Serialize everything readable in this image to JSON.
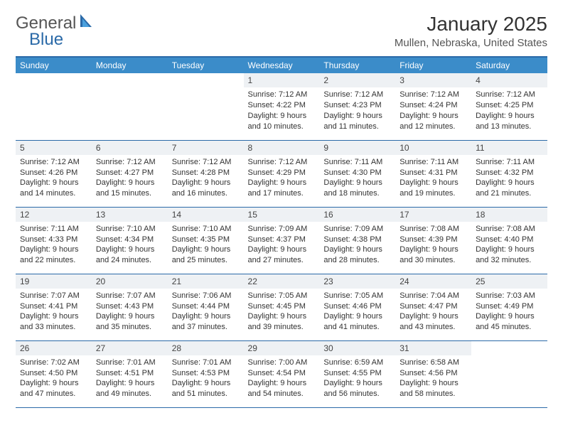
{
  "logo": {
    "text1": "General",
    "text2": "Blue"
  },
  "title": "January 2025",
  "location": "Mullen, Nebraska, United States",
  "colors": {
    "header_bg": "#3b8cc9",
    "header_text": "#ffffff",
    "border": "#2b6aa8",
    "daynum_bg": "#eef1f4",
    "body_text": "#333333",
    "page_bg": "#ffffff",
    "logo_gray": "#555555",
    "logo_blue": "#2b6aa8"
  },
  "typography": {
    "month_title_size": 28,
    "location_size": 15,
    "weekday_header_size": 12,
    "daynum_size": 12,
    "cell_size": 11
  },
  "weekdays": [
    "Sunday",
    "Monday",
    "Tuesday",
    "Wednesday",
    "Thursday",
    "Friday",
    "Saturday"
  ],
  "weeks": [
    [
      {
        "day": "",
        "sunrise": "",
        "sunset": "",
        "daylight": ""
      },
      {
        "day": "",
        "sunrise": "",
        "sunset": "",
        "daylight": ""
      },
      {
        "day": "",
        "sunrise": "",
        "sunset": "",
        "daylight": ""
      },
      {
        "day": "1",
        "sunrise": "Sunrise: 7:12 AM",
        "sunset": "Sunset: 4:22 PM",
        "daylight": "Daylight: 9 hours and 10 minutes."
      },
      {
        "day": "2",
        "sunrise": "Sunrise: 7:12 AM",
        "sunset": "Sunset: 4:23 PM",
        "daylight": "Daylight: 9 hours and 11 minutes."
      },
      {
        "day": "3",
        "sunrise": "Sunrise: 7:12 AM",
        "sunset": "Sunset: 4:24 PM",
        "daylight": "Daylight: 9 hours and 12 minutes."
      },
      {
        "day": "4",
        "sunrise": "Sunrise: 7:12 AM",
        "sunset": "Sunset: 4:25 PM",
        "daylight": "Daylight: 9 hours and 13 minutes."
      }
    ],
    [
      {
        "day": "5",
        "sunrise": "Sunrise: 7:12 AM",
        "sunset": "Sunset: 4:26 PM",
        "daylight": "Daylight: 9 hours and 14 minutes."
      },
      {
        "day": "6",
        "sunrise": "Sunrise: 7:12 AM",
        "sunset": "Sunset: 4:27 PM",
        "daylight": "Daylight: 9 hours and 15 minutes."
      },
      {
        "day": "7",
        "sunrise": "Sunrise: 7:12 AM",
        "sunset": "Sunset: 4:28 PM",
        "daylight": "Daylight: 9 hours and 16 minutes."
      },
      {
        "day": "8",
        "sunrise": "Sunrise: 7:12 AM",
        "sunset": "Sunset: 4:29 PM",
        "daylight": "Daylight: 9 hours and 17 minutes."
      },
      {
        "day": "9",
        "sunrise": "Sunrise: 7:11 AM",
        "sunset": "Sunset: 4:30 PM",
        "daylight": "Daylight: 9 hours and 18 minutes."
      },
      {
        "day": "10",
        "sunrise": "Sunrise: 7:11 AM",
        "sunset": "Sunset: 4:31 PM",
        "daylight": "Daylight: 9 hours and 19 minutes."
      },
      {
        "day": "11",
        "sunrise": "Sunrise: 7:11 AM",
        "sunset": "Sunset: 4:32 PM",
        "daylight": "Daylight: 9 hours and 21 minutes."
      }
    ],
    [
      {
        "day": "12",
        "sunrise": "Sunrise: 7:11 AM",
        "sunset": "Sunset: 4:33 PM",
        "daylight": "Daylight: 9 hours and 22 minutes."
      },
      {
        "day": "13",
        "sunrise": "Sunrise: 7:10 AM",
        "sunset": "Sunset: 4:34 PM",
        "daylight": "Daylight: 9 hours and 24 minutes."
      },
      {
        "day": "14",
        "sunrise": "Sunrise: 7:10 AM",
        "sunset": "Sunset: 4:35 PM",
        "daylight": "Daylight: 9 hours and 25 minutes."
      },
      {
        "day": "15",
        "sunrise": "Sunrise: 7:09 AM",
        "sunset": "Sunset: 4:37 PM",
        "daylight": "Daylight: 9 hours and 27 minutes."
      },
      {
        "day": "16",
        "sunrise": "Sunrise: 7:09 AM",
        "sunset": "Sunset: 4:38 PM",
        "daylight": "Daylight: 9 hours and 28 minutes."
      },
      {
        "day": "17",
        "sunrise": "Sunrise: 7:08 AM",
        "sunset": "Sunset: 4:39 PM",
        "daylight": "Daylight: 9 hours and 30 minutes."
      },
      {
        "day": "18",
        "sunrise": "Sunrise: 7:08 AM",
        "sunset": "Sunset: 4:40 PM",
        "daylight": "Daylight: 9 hours and 32 minutes."
      }
    ],
    [
      {
        "day": "19",
        "sunrise": "Sunrise: 7:07 AM",
        "sunset": "Sunset: 4:41 PM",
        "daylight": "Daylight: 9 hours and 33 minutes."
      },
      {
        "day": "20",
        "sunrise": "Sunrise: 7:07 AM",
        "sunset": "Sunset: 4:43 PM",
        "daylight": "Daylight: 9 hours and 35 minutes."
      },
      {
        "day": "21",
        "sunrise": "Sunrise: 7:06 AM",
        "sunset": "Sunset: 4:44 PM",
        "daylight": "Daylight: 9 hours and 37 minutes."
      },
      {
        "day": "22",
        "sunrise": "Sunrise: 7:05 AM",
        "sunset": "Sunset: 4:45 PM",
        "daylight": "Daylight: 9 hours and 39 minutes."
      },
      {
        "day": "23",
        "sunrise": "Sunrise: 7:05 AM",
        "sunset": "Sunset: 4:46 PM",
        "daylight": "Daylight: 9 hours and 41 minutes."
      },
      {
        "day": "24",
        "sunrise": "Sunrise: 7:04 AM",
        "sunset": "Sunset: 4:47 PM",
        "daylight": "Daylight: 9 hours and 43 minutes."
      },
      {
        "day": "25",
        "sunrise": "Sunrise: 7:03 AM",
        "sunset": "Sunset: 4:49 PM",
        "daylight": "Daylight: 9 hours and 45 minutes."
      }
    ],
    [
      {
        "day": "26",
        "sunrise": "Sunrise: 7:02 AM",
        "sunset": "Sunset: 4:50 PM",
        "daylight": "Daylight: 9 hours and 47 minutes."
      },
      {
        "day": "27",
        "sunrise": "Sunrise: 7:01 AM",
        "sunset": "Sunset: 4:51 PM",
        "daylight": "Daylight: 9 hours and 49 minutes."
      },
      {
        "day": "28",
        "sunrise": "Sunrise: 7:01 AM",
        "sunset": "Sunset: 4:53 PM",
        "daylight": "Daylight: 9 hours and 51 minutes."
      },
      {
        "day": "29",
        "sunrise": "Sunrise: 7:00 AM",
        "sunset": "Sunset: 4:54 PM",
        "daylight": "Daylight: 9 hours and 54 minutes."
      },
      {
        "day": "30",
        "sunrise": "Sunrise: 6:59 AM",
        "sunset": "Sunset: 4:55 PM",
        "daylight": "Daylight: 9 hours and 56 minutes."
      },
      {
        "day": "31",
        "sunrise": "Sunrise: 6:58 AM",
        "sunset": "Sunset: 4:56 PM",
        "daylight": "Daylight: 9 hours and 58 minutes."
      },
      {
        "day": "",
        "sunrise": "",
        "sunset": "",
        "daylight": ""
      }
    ]
  ]
}
